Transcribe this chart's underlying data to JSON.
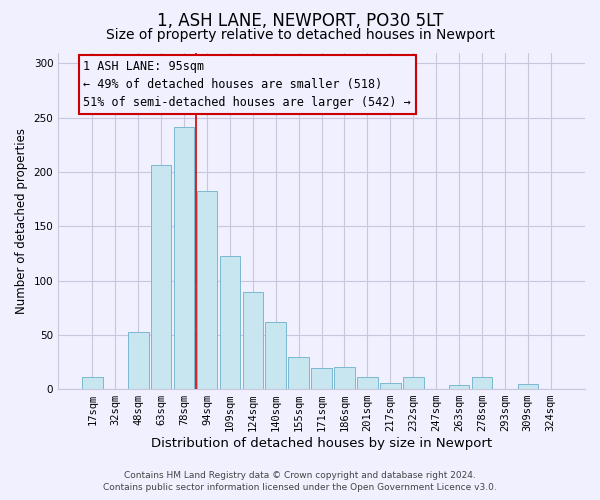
{
  "title": "1, ASH LANE, NEWPORT, PO30 5LT",
  "subtitle": "Size of property relative to detached houses in Newport",
  "xlabel": "Distribution of detached houses by size in Newport",
  "ylabel": "Number of detached properties",
  "categories": [
    "17sqm",
    "32sqm",
    "48sqm",
    "63sqm",
    "78sqm",
    "94sqm",
    "109sqm",
    "124sqm",
    "140sqm",
    "155sqm",
    "171sqm",
    "186sqm",
    "201sqm",
    "217sqm",
    "232sqm",
    "247sqm",
    "263sqm",
    "278sqm",
    "293sqm",
    "309sqm",
    "324sqm"
  ],
  "values": [
    11,
    0,
    53,
    206,
    241,
    182,
    123,
    89,
    62,
    30,
    19,
    20,
    11,
    6,
    11,
    0,
    4,
    11,
    0,
    5,
    0
  ],
  "bar_color": "#c8e6f0",
  "bar_edge_color": "#7ab8d0",
  "vline_x_index": 4,
  "vline_color": "#cc0000",
  "vline_linewidth": 1.2,
  "annotation_box_text": "1 ASH LANE: 95sqm\n← 49% of detached houses are smaller (518)\n51% of semi-detached houses are larger (542) →",
  "ylim": [
    0,
    310
  ],
  "yticks": [
    0,
    50,
    100,
    150,
    200,
    250,
    300
  ],
  "background_color": "#f0f0ff",
  "grid_color": "#c8c8dc",
  "footer_text": "Contains HM Land Registry data © Crown copyright and database right 2024.\nContains public sector information licensed under the Open Government Licence v3.0.",
  "title_fontsize": 12,
  "subtitle_fontsize": 10,
  "xlabel_fontsize": 9.5,
  "ylabel_fontsize": 8.5,
  "tick_fontsize": 7.5,
  "annotation_fontsize": 8.5,
  "footer_fontsize": 6.5
}
